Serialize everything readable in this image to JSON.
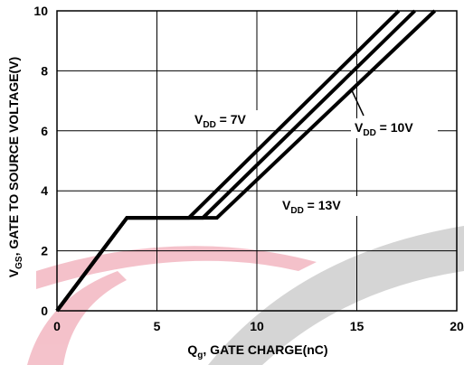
{
  "chart_data": {
    "type": "line",
    "x_label": {
      "main": "Q",
      "sub": "g",
      "rest": ", GATE CHARGE(nC)"
    },
    "y_label": {
      "main": "V",
      "sub": "GS",
      "rest": ", GATE TO SOURCE VOLTAGE(V)"
    },
    "xlim": [
      0,
      20
    ],
    "xticks": [
      0,
      5,
      10,
      15,
      20
    ],
    "ylim": [
      0,
      10
    ],
    "yticks": [
      0,
      2,
      4,
      6,
      8,
      10
    ],
    "grid": true,
    "series": [
      {
        "label": {
          "main": "V",
          "sub": "DD",
          "rest": " = 7V"
        },
        "color": "#000000",
        "x": [
          0,
          3.5,
          6.6,
          17.1
        ],
        "values": [
          0,
          3.1,
          3.1,
          10
        ]
      },
      {
        "label": {
          "main": "V",
          "sub": "DD",
          "rest": " = 10V"
        },
        "color": "#000000",
        "x": [
          0,
          3.5,
          7.3,
          17.9
        ],
        "values": [
          0,
          3.1,
          3.1,
          10
        ]
      },
      {
        "label": {
          "main": "V",
          "sub": "DD",
          "rest": " = 13V"
        },
        "color": "#000000",
        "x": [
          0,
          3.5,
          8.0,
          18.9
        ],
        "values": [
          0,
          3.1,
          3.1,
          10
        ]
      }
    ]
  }
}
